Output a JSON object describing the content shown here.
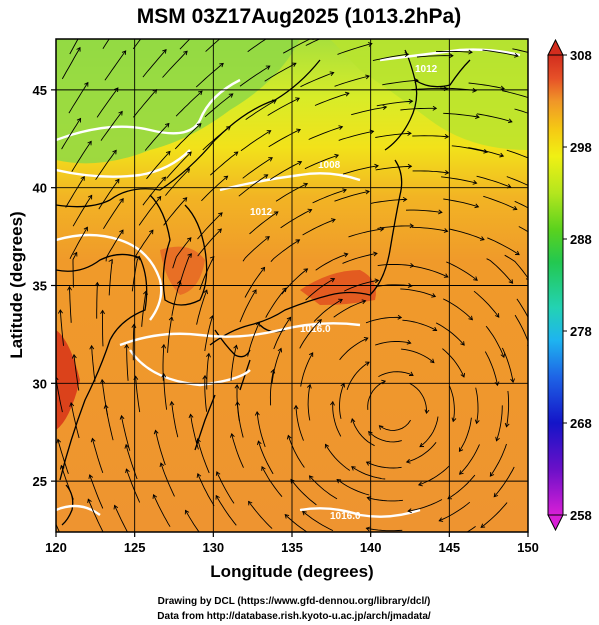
{
  "title": "MSM 03Z17Aug2025 (1013.2hPa)",
  "xaxis": {
    "label": "Longitude (degrees)",
    "range": [
      120,
      150
    ],
    "ticks": [
      "120",
      "125",
      "130",
      "135",
      "140",
      "145",
      "150"
    ],
    "tick_values": [
      120,
      125,
      130,
      135,
      140,
      145,
      150
    ]
  },
  "yaxis": {
    "label": "Latitude  (degrees)",
    "range": [
      22.4,
      47.6
    ],
    "ticks": [
      "25",
      "30",
      "35",
      "40",
      "45"
    ],
    "tick_values": [
      25,
      30,
      35,
      40,
      45
    ]
  },
  "colorbar": {
    "range": [
      258,
      308
    ],
    "ticks": [
      "308",
      "298",
      "288",
      "278",
      "268",
      "258"
    ],
    "tick_values": [
      308,
      298,
      288,
      278,
      268,
      258
    ],
    "colors": [
      "#d81fd6",
      "#6a10c8",
      "#1414c8",
      "#1e64e6",
      "#1eb4f0",
      "#23d2b4",
      "#23c850",
      "#5ad21e",
      "#b4e61e",
      "#f0f014",
      "#f5c814",
      "#f09628",
      "#f07828",
      "#e65028",
      "#d22d1e"
    ]
  },
  "isobar_labels": [
    "1008",
    "1012",
    "1016.0",
    "1016.0",
    "1012"
  ],
  "credits": {
    "line1": "Drawing by DCL (https://www.gfd-dennou.org/library/dcl/)",
    "line2": "Data from http://database.rish.kyoto-u.ac.jp/arch/jmadata/"
  }
}
